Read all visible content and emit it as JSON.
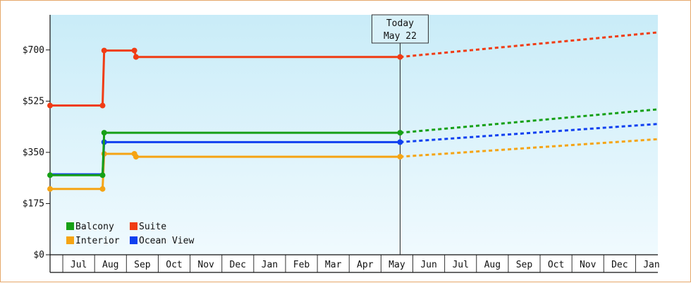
{
  "chart_data": {
    "type": "line",
    "title": "",
    "xlabel": "",
    "ylabel": "",
    "y_ticks": [
      "$0",
      "$175",
      "$350",
      "$525",
      "$700"
    ],
    "y_tick_values": [
      0,
      175,
      350,
      525,
      700
    ],
    "ylim": [
      0,
      820
    ],
    "x_ticks": [
      "Jul",
      "Aug",
      "Sep",
      "Oct",
      "Nov",
      "Dec",
      "Jan",
      "Feb",
      "Mar",
      "Apr",
      "May",
      "Jun",
      "Jul",
      "Aug",
      "Sep",
      "Oct",
      "Nov",
      "Dec",
      "Jan"
    ],
    "xlim": [
      0,
      19.1
    ],
    "today": {
      "line1": "Today",
      "line2": "May 22",
      "x": 11.0
    },
    "legend_position": "bottom-left",
    "grid": "vertical month dividers",
    "series": [
      {
        "name": "Suite",
        "color": "#f03c14",
        "points": [
          [
            0.0,
            510
          ],
          [
            1.65,
            510
          ],
          [
            1.7,
            698
          ],
          [
            2.65,
            698
          ],
          [
            2.7,
            676
          ],
          [
            11.0,
            676
          ]
        ],
        "markers": [
          [
            0.0,
            510
          ],
          [
            1.65,
            510
          ],
          [
            1.7,
            698
          ],
          [
            2.65,
            698
          ],
          [
            2.7,
            676
          ],
          [
            11.0,
            676
          ]
        ],
        "forecast": [
          [
            11.0,
            676
          ],
          [
            19.1,
            760
          ]
        ]
      },
      {
        "name": "Balcony",
        "color": "#16a016",
        "points": [
          [
            0.0,
            272
          ],
          [
            1.65,
            272
          ],
          [
            1.7,
            417
          ],
          [
            11.0,
            417
          ]
        ],
        "markers": [
          [
            0.0,
            272
          ],
          [
            1.65,
            272
          ],
          [
            1.7,
            417
          ],
          [
            11.0,
            417
          ]
        ],
        "forecast": [
          [
            11.0,
            417
          ],
          [
            19.1,
            497
          ]
        ]
      },
      {
        "name": "Ocean View",
        "color": "#1040f0",
        "points": [
          [
            0.0,
            275
          ],
          [
            1.65,
            275
          ],
          [
            1.7,
            385
          ],
          [
            11.0,
            385
          ]
        ],
        "markers": [
          [
            1.7,
            385
          ],
          [
            11.0,
            385
          ]
        ],
        "forecast": [
          [
            11.0,
            385
          ],
          [
            19.1,
            447
          ]
        ]
      },
      {
        "name": "Interior",
        "color": "#f5a414",
        "points": [
          [
            0.0,
            225
          ],
          [
            1.65,
            225
          ],
          [
            1.7,
            345
          ],
          [
            2.65,
            345
          ],
          [
            2.7,
            335
          ],
          [
            11.0,
            335
          ]
        ],
        "markers": [
          [
            0.0,
            225
          ],
          [
            1.65,
            225
          ],
          [
            1.7,
            345
          ],
          [
            2.65,
            345
          ],
          [
            2.7,
            335
          ],
          [
            11.0,
            335
          ]
        ],
        "forecast": [
          [
            11.0,
            335
          ],
          [
            19.1,
            395
          ]
        ]
      }
    ],
    "legend": [
      {
        "name": "Balcony",
        "color": "#16a016"
      },
      {
        "name": "Suite",
        "color": "#f03c14"
      },
      {
        "name": "Interior",
        "color": "#f5a414"
      },
      {
        "name": "Ocean View",
        "color": "#1040f0"
      }
    ]
  }
}
